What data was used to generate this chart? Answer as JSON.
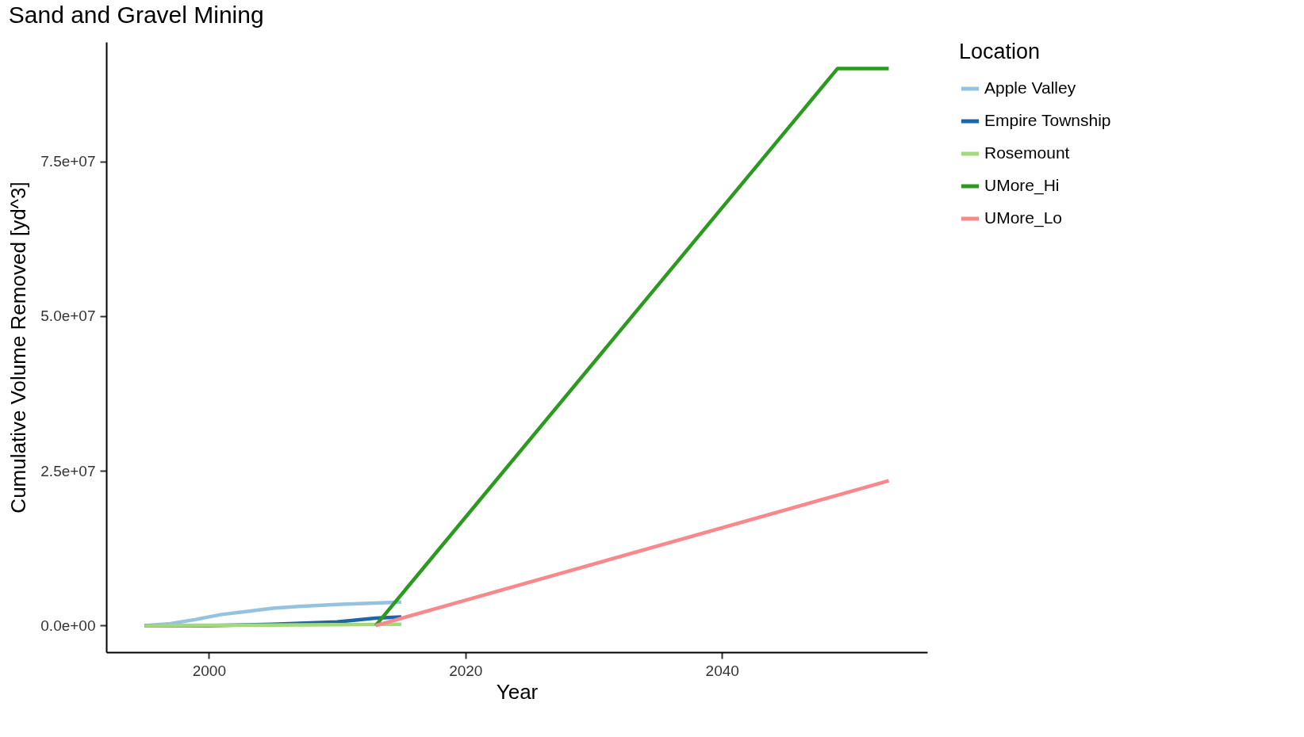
{
  "chart_data": {
    "type": "line",
    "title": "Sand and Gravel Mining",
    "xlabel": "Year",
    "ylabel": "Cumulative Volume Removed [yd^3]",
    "legend_title": "Location",
    "legend": "right",
    "grid": false,
    "marker": "none",
    "line_style": "solid",
    "xlim": [
      1992,
      2056
    ],
    "xticks": [
      2000,
      2020,
      2040
    ],
    "ylim": [
      -4300000,
      94300000
    ],
    "yticks": [
      {
        "value": 0,
        "label": "0.0e+00"
      },
      {
        "value": 25000000,
        "label": "2.5e+07"
      },
      {
        "value": 50000000,
        "label": "5.0e+07"
      },
      {
        "value": 75000000,
        "label": "7.5e+07"
      }
    ],
    "series": [
      {
        "name": "Apple Valley",
        "color": "#94c2df",
        "x": [
          1995,
          1997,
          1999,
          2001,
          2003,
          2005,
          2007,
          2010,
          2015
        ],
        "values": [
          0,
          300000,
          1000000,
          1800000,
          2300000,
          2800000,
          3100000,
          3400000,
          3800000
        ]
      },
      {
        "name": "Empire Township",
        "color": "#1f65a9",
        "x": [
          1995,
          2000,
          2005,
          2010,
          2013,
          2015
        ],
        "values": [
          0,
          0,
          200000,
          600000,
          1200000,
          1400000
        ]
      },
      {
        "name": "Rosemount",
        "color": "#a3d97a",
        "x": [
          1995,
          2005,
          2015
        ],
        "values": [
          0,
          100000,
          200000
        ]
      },
      {
        "name": "UMore_Hi",
        "color": "#2c9a20",
        "x": [
          2013,
          2049,
          2053
        ],
        "values": [
          0,
          90000000,
          90000000
        ]
      },
      {
        "name": "UMore_Lo",
        "color": "#f8888b",
        "x": [
          2013,
          2053
        ],
        "values": [
          0,
          23400000
        ]
      }
    ]
  }
}
